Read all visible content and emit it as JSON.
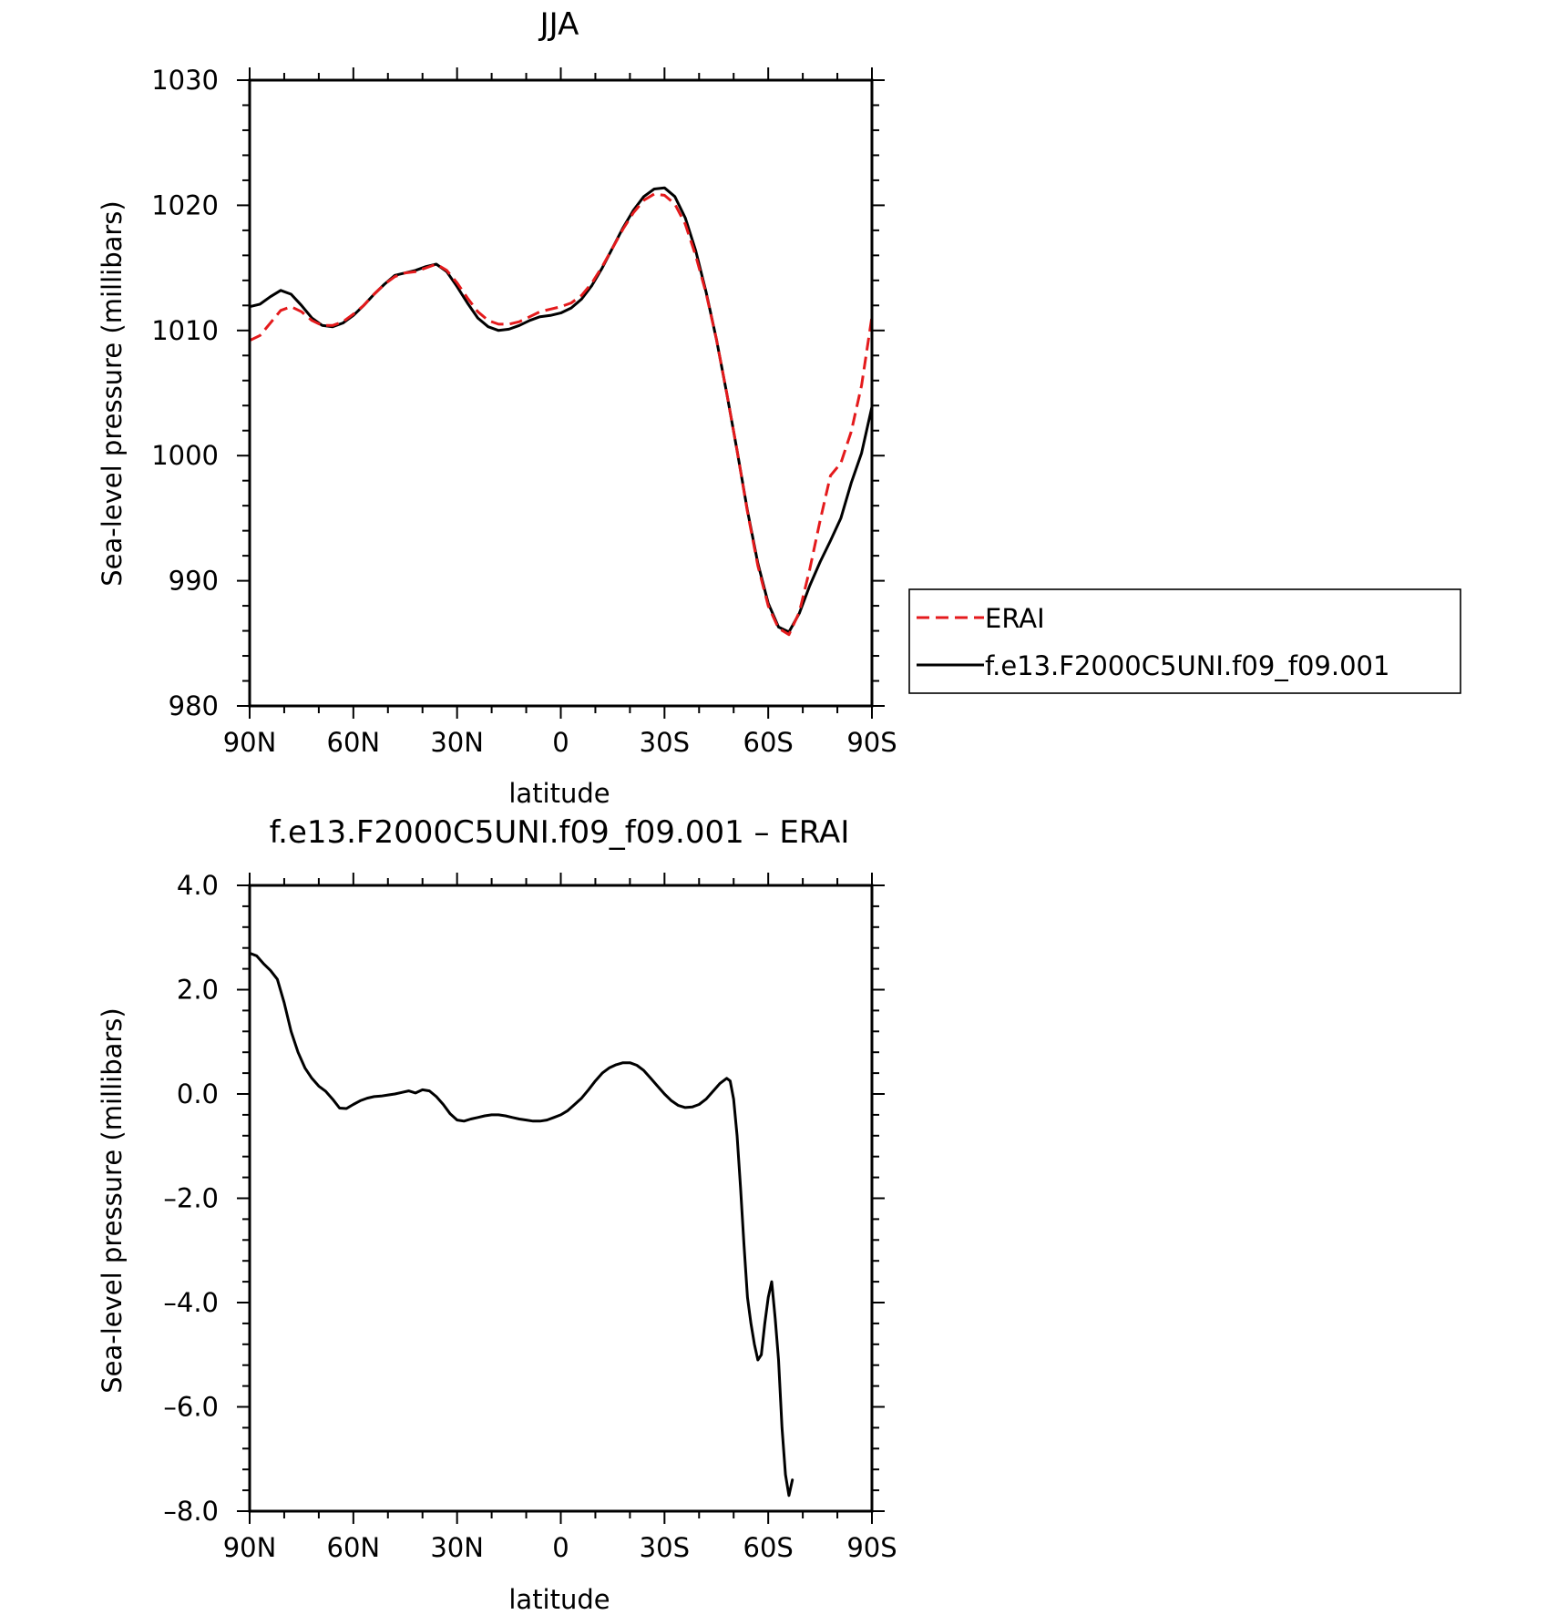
{
  "chart_data": [
    {
      "type": "line",
      "title": "JJA",
      "xlabel": "latitude",
      "ylabel": "Sea-level pressure (millibars)",
      "xlim": [
        90,
        -90
      ],
      "ylim": [
        980,
        1030
      ],
      "x_ticks": [
        {
          "value": 90,
          "label": "90N"
        },
        {
          "value": 60,
          "label": "60N"
        },
        {
          "value": 30,
          "label": "30N"
        },
        {
          "value": 0,
          "label": "0"
        },
        {
          "value": -30,
          "label": "30S"
        },
        {
          "value": -60,
          "label": "60S"
        },
        {
          "value": -90,
          "label": "90S"
        }
      ],
      "y_ticks": [
        {
          "value": 1030,
          "label": "1030"
        },
        {
          "value": 1020,
          "label": "1020"
        },
        {
          "value": 1010,
          "label": "1010"
        },
        {
          "value": 1000,
          "label": "1000"
        },
        {
          "value": 990,
          "label": "990"
        },
        {
          "value": 980,
          "label": "980"
        }
      ],
      "grid": false,
      "legend": {
        "placement": "right",
        "entries": [
          "ERAI",
          "f.e13.F2000C5UNI.f09_f09.001"
        ]
      },
      "series": [
        {
          "name": "ERAI",
          "color": "#e41a1c",
          "dash": "dashed",
          "points": [
            [
              90,
              1009.2
            ],
            [
              87,
              1009.6
            ],
            [
              84,
              1010.6
            ],
            [
              81,
              1011.6
            ],
            [
              78,
              1011.9
            ],
            [
              75,
              1011.5
            ],
            [
              72,
              1010.8
            ],
            [
              69,
              1010.4
            ],
            [
              66,
              1010.4
            ],
            [
              63,
              1010.7
            ],
            [
              60,
              1011.3
            ],
            [
              57,
              1012.0
            ],
            [
              54,
              1012.9
            ],
            [
              51,
              1013.7
            ],
            [
              48,
              1014.3
            ],
            [
              45,
              1014.6
            ],
            [
              42,
              1014.7
            ],
            [
              39,
              1015.0
            ],
            [
              36,
              1015.3
            ],
            [
              33,
              1014.8
            ],
            [
              30,
              1013.8
            ],
            [
              27,
              1012.6
            ],
            [
              24,
              1011.5
            ],
            [
              21,
              1010.8
            ],
            [
              18,
              1010.5
            ],
            [
              15,
              1010.5
            ],
            [
              12,
              1010.7
            ],
            [
              9,
              1011.1
            ],
            [
              6,
              1011.5
            ],
            [
              3,
              1011.7
            ],
            [
              0,
              1011.9
            ],
            [
              -3,
              1012.2
            ],
            [
              -6,
              1012.8
            ],
            [
              -9,
              1013.8
            ],
            [
              -12,
              1015.1
            ],
            [
              -15,
              1016.6
            ],
            [
              -18,
              1018.1
            ],
            [
              -21,
              1019.4
            ],
            [
              -24,
              1020.4
            ],
            [
              -27,
              1020.9
            ],
            [
              -30,
              1020.8
            ],
            [
              -33,
              1020.1
            ],
            [
              -36,
              1018.5
            ],
            [
              -39,
              1016.0
            ],
            [
              -42,
              1013.0
            ],
            [
              -45,
              1009.3
            ],
            [
              -48,
              1005.0
            ],
            [
              -51,
              1000.4
            ],
            [
              -54,
              995.5
            ],
            [
              -57,
              991.2
            ],
            [
              -60,
              988.0
            ],
            [
              -63,
              986.2
            ],
            [
              -66,
              985.7
            ],
            [
              -69,
              987.5
            ],
            [
              -72,
              990.9
            ],
            [
              -75,
              994.8
            ],
            [
              -78,
              998.4
            ],
            [
              -81,
              999.4
            ],
            [
              -84,
              1001.9
            ],
            [
              -87,
              1005.6
            ],
            [
              -90,
              1011.1
            ]
          ]
        },
        {
          "name": "f.e13.F2000C5UNI.f09_f09.001",
          "color": "#000000",
          "dash": "solid",
          "points": [
            [
              90,
              1011.9
            ],
            [
              87,
              1012.1
            ],
            [
              84,
              1012.7
            ],
            [
              81,
              1013.2
            ],
            [
              78,
              1012.9
            ],
            [
              75,
              1012.0
            ],
            [
              72,
              1011.0
            ],
            [
              69,
              1010.4
            ],
            [
              66,
              1010.3
            ],
            [
              63,
              1010.6
            ],
            [
              60,
              1011.2
            ],
            [
              57,
              1012.0
            ],
            [
              54,
              1012.9
            ],
            [
              51,
              1013.7
            ],
            [
              48,
              1014.4
            ],
            [
              45,
              1014.6
            ],
            [
              42,
              1014.8
            ],
            [
              39,
              1015.1
            ],
            [
              36,
              1015.3
            ],
            [
              33,
              1014.7
            ],
            [
              30,
              1013.5
            ],
            [
              27,
              1012.2
            ],
            [
              24,
              1011.0
            ],
            [
              21,
              1010.3
            ],
            [
              18,
              1010.0
            ],
            [
              15,
              1010.1
            ],
            [
              12,
              1010.4
            ],
            [
              9,
              1010.8
            ],
            [
              6,
              1011.1
            ],
            [
              3,
              1011.2
            ],
            [
              0,
              1011.4
            ],
            [
              -3,
              1011.8
            ],
            [
              -6,
              1012.5
            ],
            [
              -9,
              1013.6
            ],
            [
              -12,
              1015.0
            ],
            [
              -15,
              1016.6
            ],
            [
              -18,
              1018.2
            ],
            [
              -21,
              1019.6
            ],
            [
              -24,
              1020.7
            ],
            [
              -27,
              1021.3
            ],
            [
              -30,
              1021.4
            ],
            [
              -33,
              1020.7
            ],
            [
              -36,
              1019.0
            ],
            [
              -39,
              1016.4
            ],
            [
              -42,
              1013.1
            ],
            [
              -45,
              1009.3
            ],
            [
              -48,
              1005.0
            ],
            [
              -51,
              1000.4
            ],
            [
              -54,
              995.6
            ],
            [
              -57,
              991.4
            ],
            [
              -60,
              988.2
            ],
            [
              -63,
              986.3
            ],
            [
              -66,
              985.9
            ],
            [
              -69,
              987.4
            ],
            [
              -72,
              989.6
            ],
            [
              -75,
              991.5
            ],
            [
              -78,
              993.2
            ],
            [
              -81,
              995.0
            ],
            [
              -84,
              997.8
            ],
            [
              -87,
              1000.2
            ],
            [
              -90,
              1003.9
            ]
          ]
        }
      ]
    },
    {
      "type": "line",
      "title": "f.e13.F2000C5UNI.f09_f09.001 – ERAI",
      "xlabel": "latitude",
      "ylabel": "Sea-level pressure (millibars)",
      "xlim": [
        90,
        -90
      ],
      "ylim": [
        -8,
        4
      ],
      "x_ticks": [
        {
          "value": 90,
          "label": "90N"
        },
        {
          "value": 60,
          "label": "60N"
        },
        {
          "value": 30,
          "label": "30N"
        },
        {
          "value": 0,
          "label": "0"
        },
        {
          "value": -30,
          "label": "30S"
        },
        {
          "value": -60,
          "label": "60S"
        },
        {
          "value": -90,
          "label": "90S"
        }
      ],
      "y_ticks": [
        {
          "value": 4,
          "label": "4.0"
        },
        {
          "value": 2,
          "label": "2.0"
        },
        {
          "value": 0,
          "label": "0.0"
        },
        {
          "value": -2,
          "label": "–2.0"
        },
        {
          "value": -4,
          "label": "–4.0"
        },
        {
          "value": -6,
          "label": "–6.0"
        },
        {
          "value": -8,
          "label": "–8.0"
        }
      ],
      "grid": false,
      "series": [
        {
          "color": "#000000",
          "dash": "solid",
          "points": [
            [
              90,
              2.7
            ],
            [
              88,
              2.65
            ],
            [
              86,
              2.5
            ],
            [
              84,
              2.37
            ],
            [
              82,
              2.2
            ],
            [
              80,
              1.75
            ],
            [
              78,
              1.2
            ],
            [
              76,
              0.8
            ],
            [
              74,
              0.5
            ],
            [
              72,
              0.3
            ],
            [
              70,
              0.15
            ],
            [
              68,
              0.05
            ],
            [
              66,
              -0.1
            ],
            [
              64,
              -0.27
            ],
            [
              62,
              -0.28
            ],
            [
              60,
              -0.2
            ],
            [
              58,
              -0.13
            ],
            [
              56,
              -0.08
            ],
            [
              54,
              -0.05
            ],
            [
              52,
              -0.04
            ],
            [
              50,
              -0.02
            ],
            [
              48,
              0.0
            ],
            [
              46,
              0.03
            ],
            [
              44,
              0.06
            ],
            [
              42,
              0.02
            ],
            [
              40,
              0.08
            ],
            [
              38,
              0.06
            ],
            [
              36,
              -0.05
            ],
            [
              34,
              -0.2
            ],
            [
              32,
              -0.38
            ],
            [
              30,
              -0.5
            ],
            [
              28,
              -0.52
            ],
            [
              26,
              -0.48
            ],
            [
              24,
              -0.45
            ],
            [
              22,
              -0.42
            ],
            [
              20,
              -0.4
            ],
            [
              18,
              -0.4
            ],
            [
              16,
              -0.42
            ],
            [
              14,
              -0.45
            ],
            [
              12,
              -0.48
            ],
            [
              10,
              -0.5
            ],
            [
              8,
              -0.52
            ],
            [
              6,
              -0.52
            ],
            [
              4,
              -0.5
            ],
            [
              2,
              -0.45
            ],
            [
              0,
              -0.4
            ],
            [
              -2,
              -0.32
            ],
            [
              -4,
              -0.2
            ],
            [
              -6,
              -0.08
            ],
            [
              -8,
              0.08
            ],
            [
              -10,
              0.25
            ],
            [
              -12,
              0.4
            ],
            [
              -14,
              0.5
            ],
            [
              -16,
              0.56
            ],
            [
              -18,
              0.6
            ],
            [
              -20,
              0.6
            ],
            [
              -22,
              0.55
            ],
            [
              -24,
              0.45
            ],
            [
              -26,
              0.3
            ],
            [
              -28,
              0.15
            ],
            [
              -30,
              0.0
            ],
            [
              -32,
              -0.13
            ],
            [
              -34,
              -0.22
            ],
            [
              -36,
              -0.26
            ],
            [
              -38,
              -0.25
            ],
            [
              -40,
              -0.2
            ],
            [
              -42,
              -0.1
            ],
            [
              -44,
              0.05
            ],
            [
              -46,
              0.2
            ],
            [
              -48,
              0.3
            ],
            [
              -49,
              0.25
            ],
            [
              -50,
              -0.1
            ],
            [
              -51,
              -0.8
            ],
            [
              -52,
              -1.8
            ],
            [
              -53,
              -2.9
            ],
            [
              -54,
              -3.9
            ],
            [
              -55,
              -4.4
            ],
            [
              -56,
              -4.8
            ],
            [
              -57,
              -5.1
            ],
            [
              -58,
              -5.0
            ],
            [
              -59,
              -4.4
            ],
            [
              -60,
              -3.9
            ],
            [
              -61,
              -3.6
            ],
            [
              -62,
              -4.3
            ],
            [
              -63,
              -5.1
            ],
            [
              -64,
              -6.4
            ],
            [
              -65,
              -7.3
            ],
            [
              -66,
              -7.7
            ],
            [
              -67,
              -7.4
            ]
          ]
        }
      ]
    }
  ]
}
